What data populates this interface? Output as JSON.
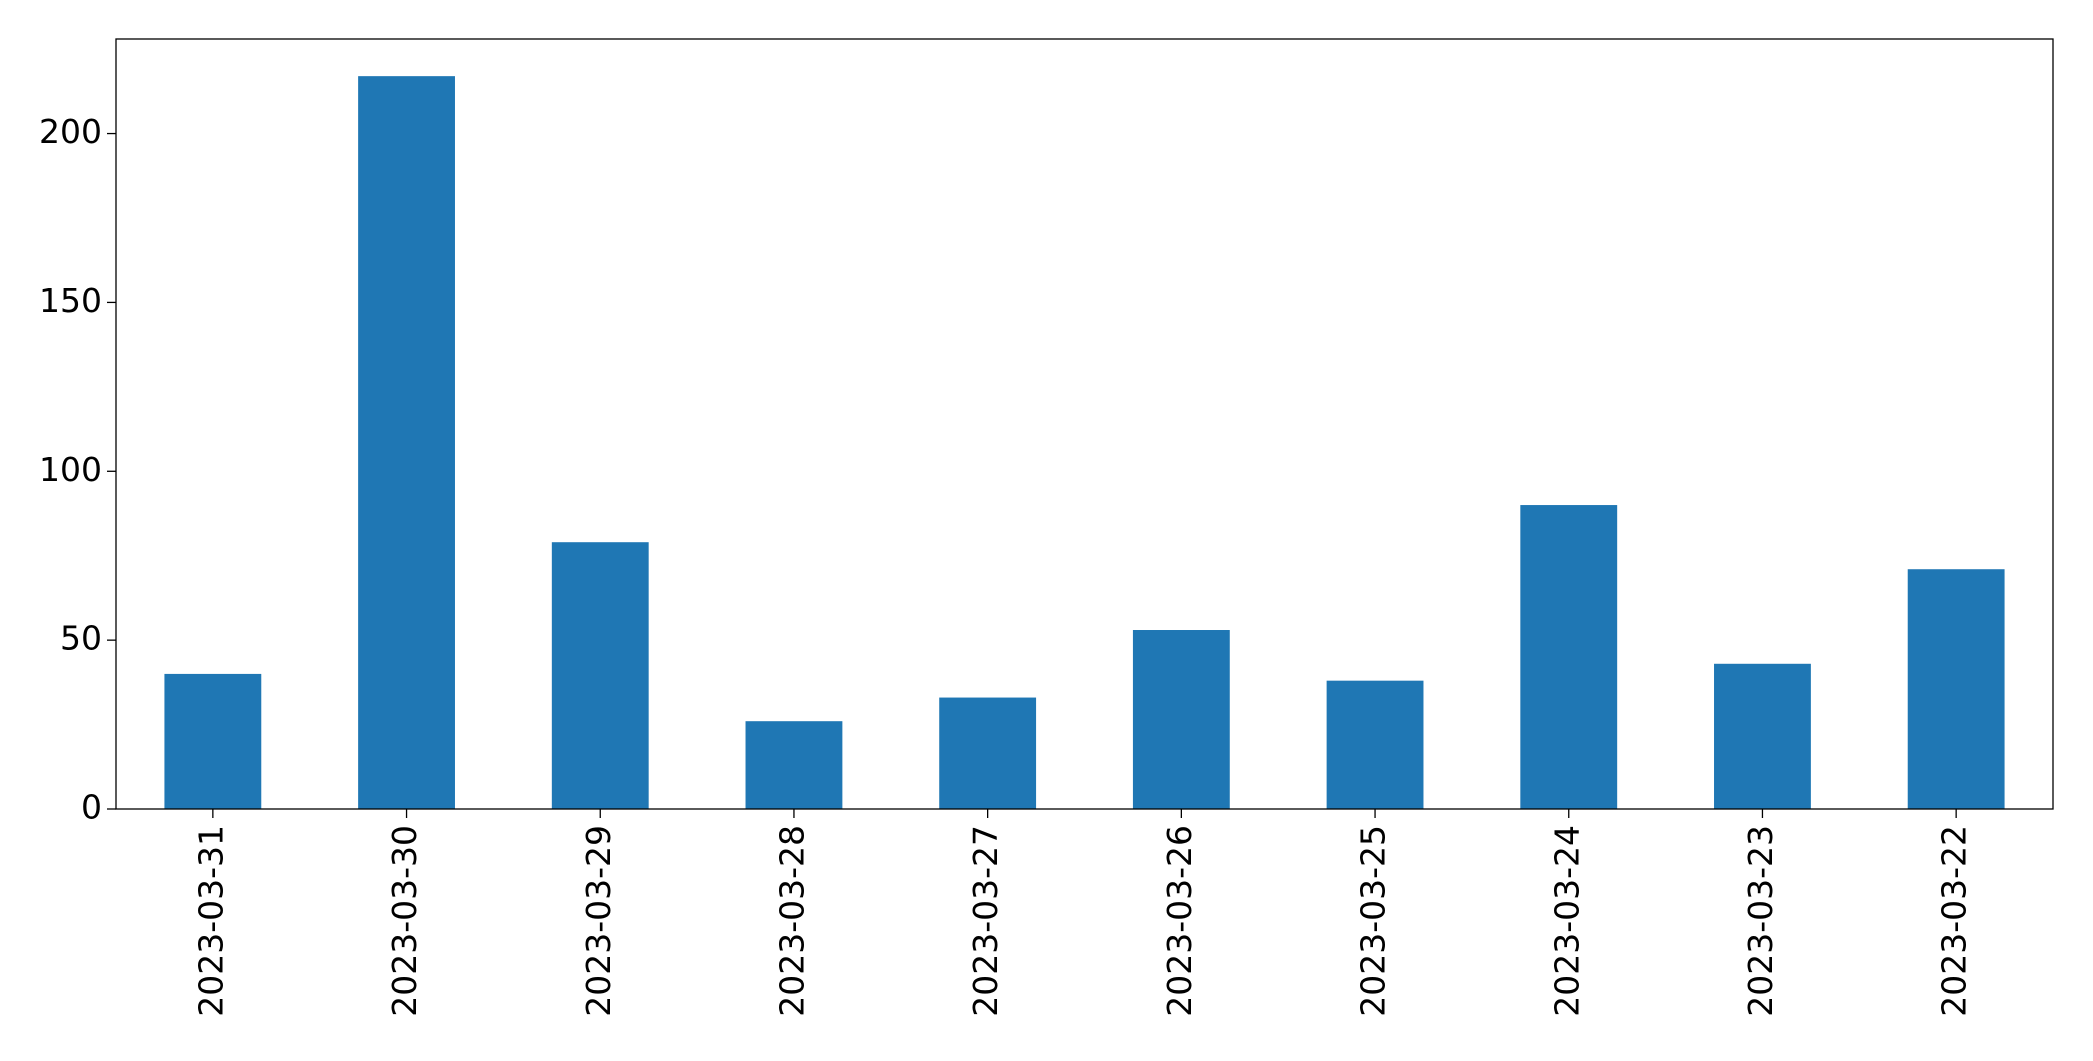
{
  "chart_data": {
    "type": "bar",
    "categories": [
      "2023-03-31",
      "2023-03-30",
      "2023-03-29",
      "2023-03-28",
      "2023-03-27",
      "2023-03-26",
      "2023-03-25",
      "2023-03-24",
      "2023-03-23",
      "2023-03-22"
    ],
    "values": [
      40,
      217,
      79,
      26,
      33,
      53,
      38,
      90,
      43,
      71
    ],
    "color": "#1f77b4",
    "ylim": [
      0,
      228
    ],
    "yticks": [
      0,
      50,
      100,
      150,
      200
    ],
    "grid": false
  }
}
